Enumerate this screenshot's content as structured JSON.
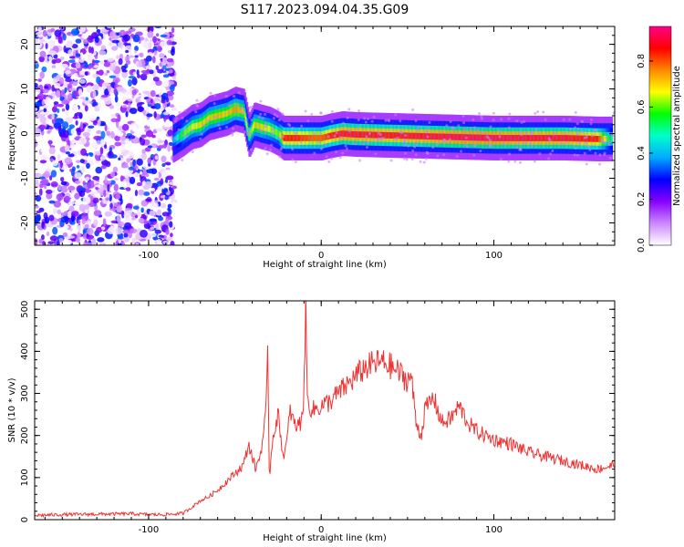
{
  "figure_title": "S117.2023.094.04.35.G09",
  "chart_data": [
    {
      "type": "heatmap",
      "xlabel": "Height of straight line (km)",
      "ylabel": "Frequency (Hz)",
      "xlim": [
        -166,
        170
      ],
      "ylim": [
        -25,
        24
      ],
      "x_ticks": [
        -100,
        0,
        100
      ],
      "y_ticks": [
        -20,
        -10,
        0,
        10,
        20
      ],
      "colorbar": {
        "label": "Normalized spectral amplitude",
        "range": [
          0.0,
          0.95
        ],
        "ticks": [
          0.0,
          0.2,
          0.4,
          0.6,
          0.8
        ],
        "colors": [
          "#ffffff",
          "#cc88ff",
          "#8800ff",
          "#0000ff",
          "#00aaff",
          "#00ffcc",
          "#00ff00",
          "#ffff00",
          "#ff8800",
          "#ff0000",
          "#ff0088"
        ]
      },
      "noise_region_x": [
        -166,
        -85
      ],
      "ridge": {
        "x": [
          -86,
          -80,
          -75,
          -70,
          -65,
          -60,
          -55,
          -50,
          -45,
          -42,
          -39,
          -35,
          -30,
          -25,
          -22,
          -15,
          -5,
          0,
          5,
          12,
          20,
          40,
          60,
          80,
          100,
          120,
          140,
          160,
          168
        ],
        "freq": [
          -1.5,
          0,
          1.5,
          2,
          3.5,
          4,
          4.5,
          5.5,
          5,
          -0.5,
          2,
          1.5,
          1,
          0,
          -1,
          -1,
          -1,
          -1,
          -0.5,
          0,
          -0.2,
          -0.4,
          -0.6,
          -0.8,
          -1,
          -1,
          -1,
          -1.2,
          -1.2
        ],
        "amplitude": [
          0.4,
          0.6,
          0.65,
          0.7,
          0.7,
          0.72,
          0.7,
          0.75,
          0.7,
          0.6,
          0.7,
          0.7,
          0.65,
          0.6,
          0.85,
          0.85,
          0.8,
          0.8,
          0.85,
          0.9,
          0.9,
          0.88,
          0.9,
          0.92,
          0.92,
          0.9,
          0.9,
          0.85,
          0.5
        ]
      }
    },
    {
      "type": "line",
      "xlabel": "Height of straight line (km)",
      "ylabel": "SNR (10 * v/v)",
      "xlim": [
        -166,
        170
      ],
      "ylim": [
        0,
        520
      ],
      "x_ticks": [
        -100,
        0,
        100
      ],
      "y_ticks": [
        0,
        100,
        200,
        300,
        400,
        500
      ],
      "series": [
        {
          "color": "#ee3333",
          "x": [
            -166,
            -150,
            -130,
            -110,
            -100,
            -90,
            -80,
            -75,
            -70,
            -65,
            -60,
            -55,
            -50,
            -45,
            -42,
            -38,
            -35,
            -32,
            -31,
            -30,
            -28,
            -25,
            -22,
            -20,
            -18,
            -15,
            -12,
            -10,
            -9,
            -8,
            -5,
            0,
            5,
            10,
            15,
            20,
            25,
            30,
            35,
            40,
            45,
            50,
            52,
            55,
            58,
            60,
            65,
            70,
            75,
            80,
            85,
            90,
            95,
            100,
            110,
            120,
            130,
            140,
            150,
            160,
            170
          ],
          "y": [
            10,
            12,
            13,
            14,
            12,
            12,
            15,
            30,
            45,
            55,
            70,
            90,
            110,
            130,
            180,
            120,
            160,
            250,
            380,
            100,
            200,
            250,
            150,
            180,
            260,
            220,
            230,
            290,
            520,
            280,
            260,
            270,
            280,
            300,
            320,
            340,
            360,
            370,
            375,
            365,
            350,
            330,
            345,
            230,
            200,
            260,
            290,
            230,
            240,
            270,
            230,
            210,
            200,
            190,
            180,
            160,
            150,
            140,
            130,
            120,
            130
          ]
        }
      ]
    }
  ]
}
